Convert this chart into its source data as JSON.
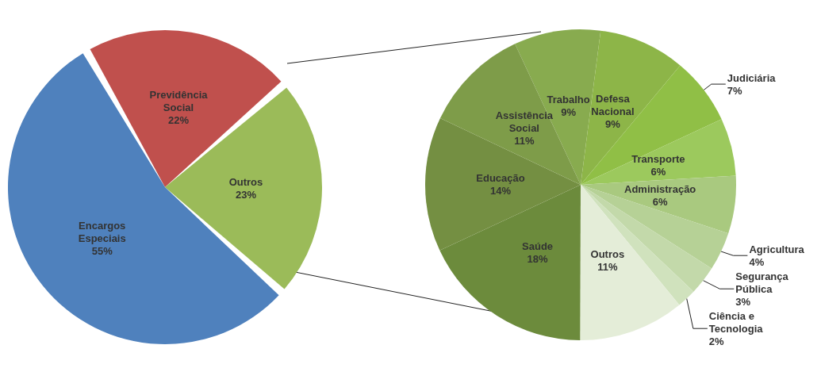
{
  "chart_data": [
    {
      "type": "pie",
      "categories": [
        "Previdência Social",
        "Outros",
        "Encargos Especiais"
      ],
      "values": [
        22,
        23,
        55
      ],
      "colors": [
        "#c0504d",
        "#9bbb59",
        "#4f81bd"
      ],
      "value_labels": [
        "22%",
        "23%",
        "55%"
      ]
    },
    {
      "type": "pie",
      "categories": [
        "Trabalho",
        "Defesa Nacional",
        "Judiciária",
        "Transporte",
        "Administração",
        "Agricultura",
        "Segurança Pública",
        "Ciência e Tecnologia",
        "Outros",
        "Saúde",
        "Educação",
        "Assistência Social"
      ],
      "values": [
        9,
        9,
        7,
        6,
        6,
        4,
        3,
        2,
        11,
        18,
        14,
        11
      ],
      "colors": [
        "#88ab4f",
        "#8db548",
        "#90bf46",
        "#9cc95d",
        "#a9c97f",
        "#b6d196",
        "#c3d9aa",
        "#d0e2bd",
        "#e4edd8",
        "#6c8b3c",
        "#748f42",
        "#7e9c49"
      ],
      "value_labels": [
        "9%",
        "9%",
        "7%",
        "6%",
        "6%",
        "4%",
        "3%",
        "2%",
        "11%",
        "18%",
        "14%",
        "11%"
      ]
    }
  ]
}
